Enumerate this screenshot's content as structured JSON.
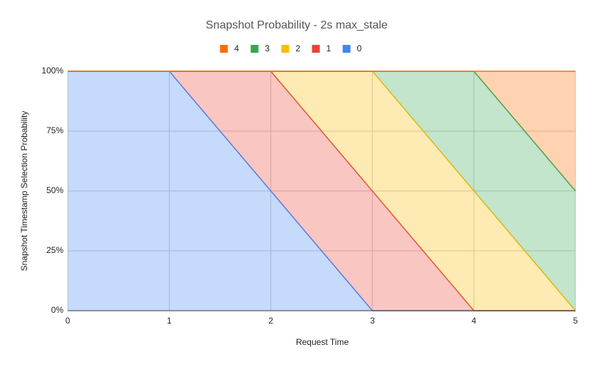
{
  "chart_data": {
    "type": "stacked_area",
    "title": "Snapshot Probability - 2s max_stale",
    "x_label": "Request Time",
    "y_label": "Snapshot Timestamp Selection Probability",
    "x": [
      0,
      1,
      2,
      3,
      4,
      5
    ],
    "series": [
      {
        "name": "0",
        "color": "#4285f4",
        "values": [
          100,
          100,
          50,
          0,
          0,
          0
        ]
      },
      {
        "name": "1",
        "color": "#ea4335",
        "values": [
          0,
          0,
          50,
          50,
          0,
          0
        ]
      },
      {
        "name": "2",
        "color": "#fbbc04",
        "values": [
          0,
          0,
          0,
          50,
          50,
          0
        ]
      },
      {
        "name": "3",
        "color": "#34a853",
        "values": [
          0,
          0,
          0,
          0,
          50,
          50
        ]
      },
      {
        "name": "4",
        "color": "#ff6d01",
        "values": [
          0,
          0,
          0,
          0,
          0,
          50
        ]
      }
    ],
    "xlim": [
      0,
      5
    ],
    "xticks": [
      0,
      1,
      2,
      3,
      4,
      5
    ],
    "ylim": [
      0,
      100
    ],
    "yticks": [
      {
        "value": 0,
        "label": "0%"
      },
      {
        "value": 25,
        "label": "25%"
      },
      {
        "value": 50,
        "label": "50%"
      },
      {
        "value": 75,
        "label": "75%"
      },
      {
        "value": 100,
        "label": "100%"
      }
    ],
    "grid": true,
    "legend": "top"
  }
}
